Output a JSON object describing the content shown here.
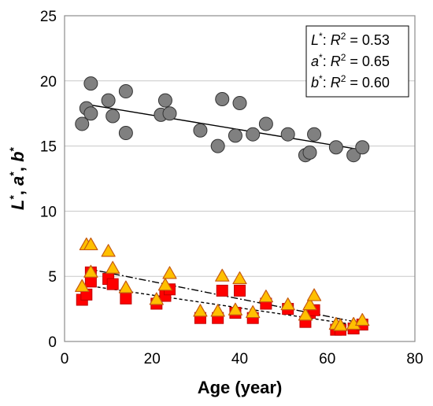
{
  "chart_data": {
    "type": "scatter",
    "xlabel": "Age (year)",
    "ylabel": "L*, a*, b*",
    "xlim": [
      0,
      80
    ],
    "ylim": [
      0,
      25
    ],
    "xticks": [
      "0",
      "20",
      "40",
      "60",
      "80"
    ],
    "yticks": [
      "0",
      "5",
      "10",
      "15",
      "20",
      "25"
    ],
    "grid": "horizontal",
    "legend_position": "top-right",
    "legend": [
      {
        "var": "L",
        "r2_label": "R",
        "value": "= 0.53"
      },
      {
        "var": "a",
        "r2_label": "R",
        "value": "= 0.65"
      },
      {
        "var": "b",
        "r2_label": "R",
        "value": "= 0.60"
      }
    ],
    "series": [
      {
        "key": "L",
        "marker": "circle",
        "color": "#808080",
        "stroke": "#333333",
        "trend": {
          "style": "solid",
          "x0": 5,
          "y0": 18.2,
          "x1": 68,
          "y1": 14.7
        },
        "points": [
          [
            4,
            16.7
          ],
          [
            5,
            17.9
          ],
          [
            6,
            17.5
          ],
          [
            6,
            19.8
          ],
          [
            10,
            18.5
          ],
          [
            11,
            17.3
          ],
          [
            14,
            19.2
          ],
          [
            14,
            16.0
          ],
          [
            22,
            17.4
          ],
          [
            23,
            18.5
          ],
          [
            24,
            17.5
          ],
          [
            31,
            16.2
          ],
          [
            35,
            15.0
          ],
          [
            36,
            18.6
          ],
          [
            39,
            15.8
          ],
          [
            40,
            18.3
          ],
          [
            43,
            15.9
          ],
          [
            46,
            16.7
          ],
          [
            51,
            15.9
          ],
          [
            55,
            14.3
          ],
          [
            56,
            14.5
          ],
          [
            57,
            15.9
          ],
          [
            62,
            14.9
          ],
          [
            66,
            14.3
          ],
          [
            68,
            14.9
          ]
        ]
      },
      {
        "key": "a",
        "marker": "square",
        "color": "#ff0000",
        "stroke": "#c00000",
        "trend": {
          "style": "dashed",
          "x0": 5,
          "y0": 4.3,
          "x1": 68,
          "y1": 1.2
        },
        "points": [
          [
            4,
            3.2
          ],
          [
            5,
            3.6
          ],
          [
            6,
            5.3
          ],
          [
            6,
            4.6
          ],
          [
            10,
            4.8
          ],
          [
            11,
            4.4
          ],
          [
            14,
            3.3
          ],
          [
            21,
            2.9
          ],
          [
            23,
            3.5
          ],
          [
            24,
            4.0
          ],
          [
            31,
            1.8
          ],
          [
            35,
            1.8
          ],
          [
            36,
            3.9
          ],
          [
            39,
            2.2
          ],
          [
            40,
            3.9
          ],
          [
            43,
            1.8
          ],
          [
            46,
            2.9
          ],
          [
            51,
            2.5
          ],
          [
            55,
            1.5
          ],
          [
            56,
            2.2
          ],
          [
            57,
            2.4
          ],
          [
            62,
            0.9
          ],
          [
            63,
            0.9
          ],
          [
            66,
            1.0
          ],
          [
            68,
            1.3
          ]
        ]
      },
      {
        "key": "b",
        "marker": "triangle",
        "color": "#ffc000",
        "stroke": "#c55a11",
        "trend": {
          "style": "dashdot",
          "x0": 5,
          "y0": 5.6,
          "x1": 68,
          "y1": 1.4
        },
        "points": [
          [
            4,
            4.2
          ],
          [
            5,
            7.4
          ],
          [
            6,
            7.4
          ],
          [
            6,
            5.3
          ],
          [
            10,
            6.9
          ],
          [
            11,
            5.6
          ],
          [
            14,
            4.1
          ],
          [
            21,
            3.2
          ],
          [
            23,
            4.3
          ],
          [
            24,
            5.2
          ],
          [
            31,
            2.3
          ],
          [
            35,
            2.3
          ],
          [
            36,
            5.0
          ],
          [
            39,
            2.4
          ],
          [
            40,
            4.8
          ],
          [
            43,
            2.2
          ],
          [
            46,
            3.4
          ],
          [
            51,
            2.8
          ],
          [
            55,
            2.0
          ],
          [
            56,
            2.8
          ],
          [
            57,
            3.5
          ],
          [
            62,
            1.3
          ],
          [
            63,
            1.2
          ],
          [
            66,
            1.3
          ],
          [
            68,
            1.6
          ]
        ]
      }
    ]
  }
}
